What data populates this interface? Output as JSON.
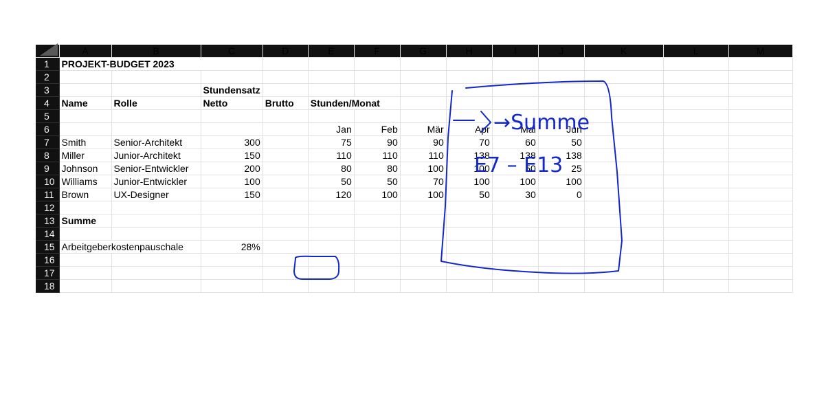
{
  "columns": [
    "A",
    "B",
    "C",
    "D",
    "E",
    "F",
    "G",
    "H",
    "I",
    "J",
    "K",
    "L",
    "M"
  ],
  "rows": [
    "1",
    "2",
    "3",
    "4",
    "5",
    "6",
    "7",
    "8",
    "9",
    "10",
    "11",
    "12",
    "13",
    "14",
    "15",
    "16",
    "17",
    "18"
  ],
  "cells": {
    "r1_a": "PROJEKT-BUDGET 2023",
    "r3_c": "Stundensatz",
    "r4_a": "Name",
    "r4_b": "Rolle",
    "r4_c": "Netto",
    "r4_d": "Brutto",
    "r4_e": "Stunden/Monat",
    "r6_e": "Jan",
    "r6_f": "Feb",
    "r6_g": "Mär",
    "r6_h": "Apr",
    "r6_i": "Mai",
    "r6_j": "Jun",
    "r7_a": "Smith",
    "r7_b": "Senior-Architekt",
    "r7_c": "300",
    "r7_e": "75",
    "r7_f": "90",
    "r7_g": "90",
    "r7_h": "70",
    "r7_i": "60",
    "r7_j": "50",
    "r8_a": "Miller",
    "r8_b": "Junior-Architekt",
    "r8_c": "150",
    "r8_e": "110",
    "r8_f": "110",
    "r8_g": "110",
    "r8_h": "138",
    "r8_i": "138",
    "r8_j": "138",
    "r9_a": "Johnson",
    "r9_b": "Senior-Entwickler",
    "r9_c": "200",
    "r9_e": "80",
    "r9_f": "80",
    "r9_g": "100",
    "r9_h": "100",
    "r9_i": "50",
    "r9_j": "25",
    "r10_a": "Williams",
    "r10_b": "Junior-Entwickler",
    "r10_c": "100",
    "r10_e": "50",
    "r10_f": "50",
    "r10_g": "70",
    "r10_h": "100",
    "r10_i": "100",
    "r10_j": "100",
    "r11_a": "Brown",
    "r11_b": "UX-Designer",
    "r11_c": "150",
    "r11_e": "120",
    "r11_f": "100",
    "r11_g": "100",
    "r11_h": "50",
    "r11_i": "30",
    "r11_j": "0",
    "r13_a": "Summe",
    "r15_a": "Arbeitgeberkostenpauschale",
    "r15_c": "28%"
  },
  "annotation": {
    "line1": "→Summe",
    "line2": "E7 – E13",
    "ink_color": "#1428c8"
  }
}
